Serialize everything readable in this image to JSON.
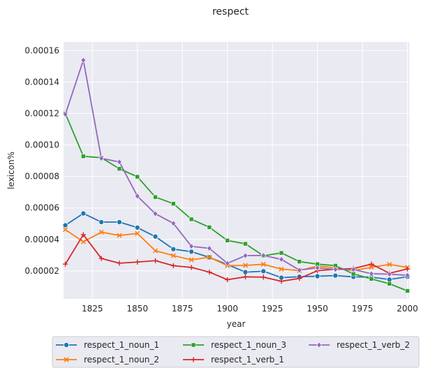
{
  "chart_data": {
    "type": "line",
    "title": "respect",
    "xlabel": "year",
    "ylabel": "lexicon%",
    "xlim": [
      1809,
      2001
    ],
    "ylim": [
      2.2e-06,
      0.0001655
    ],
    "xticks": [
      1825,
      1850,
      1875,
      1900,
      1925,
      1950,
      1975,
      2000
    ],
    "yticks": [
      2e-05,
      4e-05,
      6e-05,
      8e-05,
      0.0001,
      0.00012,
      0.00014,
      0.00016
    ],
    "ytick_labels": [
      "0.00002",
      "0.00004",
      "0.00006",
      "0.00008",
      "0.00010",
      "0.00012",
      "0.00014",
      "0.00016"
    ],
    "grid": true,
    "legend_position": "bottom",
    "x": [
      1810,
      1820,
      1830,
      1840,
      1850,
      1860,
      1870,
      1880,
      1890,
      1900,
      1910,
      1920,
      1930,
      1940,
      1950,
      1960,
      1970,
      1980,
      1990,
      2000
    ],
    "series": [
      {
        "name": "respect_1_noun_1",
        "color": "#1f77b4",
        "marker": "circle",
        "values": [
          4.9e-05,
          5.65e-05,
          5.1e-05,
          5.1e-05,
          4.75e-05,
          4.18e-05,
          3.38e-05,
          3.22e-05,
          2.86e-05,
          2.4e-05,
          1.92e-05,
          1.98e-05,
          1.57e-05,
          1.63e-05,
          1.66e-05,
          1.7e-05,
          1.62e-05,
          1.6e-05,
          1.45e-05,
          1.63e-05
        ]
      },
      {
        "name": "respect_1_noun_2",
        "color": "#ff7f0e",
        "marker": "x",
        "values": [
          4.62e-05,
          3.85e-05,
          4.46e-05,
          4.25e-05,
          4.38e-05,
          3.28e-05,
          2.97e-05,
          2.7e-05,
          2.87e-05,
          2.33e-05,
          2.35e-05,
          2.42e-05,
          2.11e-05,
          2.02e-05,
          2.31e-05,
          2.19e-05,
          2.02e-05,
          2.23e-05,
          2.41e-05,
          2.22e-05
        ]
      },
      {
        "name": "respect_1_noun_3",
        "color": "#2ca02c",
        "marker": "square",
        "values": [
          0.00012,
          9.28e-05,
          9.19e-05,
          8.49e-05,
          7.98e-05,
          6.69e-05,
          6.27e-05,
          5.28e-05,
          4.77e-05,
          3.93e-05,
          3.72e-05,
          2.96e-05,
          3.14e-05,
          2.59e-05,
          2.43e-05,
          2.33e-05,
          1.81e-05,
          1.49e-05,
          1.18e-05,
          7.3e-06
        ]
      },
      {
        "name": "respect_1_verb_1",
        "color": "#d62728",
        "marker": "plus",
        "values": [
          2.43e-05,
          4.3e-05,
          2.79e-05,
          2.49e-05,
          2.56e-05,
          2.65e-05,
          2.33e-05,
          2.22e-05,
          1.92e-05,
          1.44e-05,
          1.62e-05,
          1.6e-05,
          1.34e-05,
          1.52e-05,
          2.01e-05,
          2.1e-05,
          2.15e-05,
          2.43e-05,
          1.85e-05,
          2.12e-05
        ]
      },
      {
        "name": "respect_1_verb_2",
        "color": "#9467bd",
        "marker": "diamond",
        "values": [
          0.0001195,
          0.0001539,
          9.15e-05,
          8.92e-05,
          6.75e-05,
          5.63e-05,
          5.02e-05,
          3.56e-05,
          3.43e-05,
          2.48e-05,
          2.97e-05,
          2.98e-05,
          2.73e-05,
          2.05e-05,
          2.19e-05,
          2.09e-05,
          2.09e-05,
          1.82e-05,
          1.79e-05,
          1.72e-05
        ]
      }
    ]
  }
}
